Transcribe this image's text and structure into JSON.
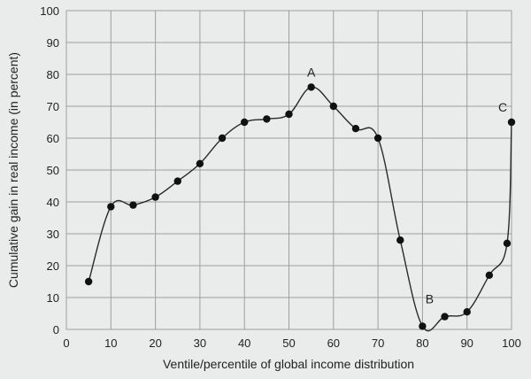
{
  "chart_data": {
    "type": "line",
    "title": "",
    "xlabel": "Ventile/percentile of global income distribution",
    "ylabel": "Cumulative gain in real income (in percent)",
    "xlim": [
      0,
      100
    ],
    "ylim": [
      0,
      100
    ],
    "xticks": [
      "0",
      "10",
      "20",
      "30",
      "40",
      "50",
      "60",
      "70",
      "80",
      "90",
      "100"
    ],
    "yticks": [
      "0",
      "10",
      "20",
      "30",
      "40",
      "50",
      "60",
      "70",
      "80",
      "90",
      "100"
    ],
    "grid": true,
    "series": [
      {
        "x": [
          5,
          10,
          15,
          20,
          25,
          30,
          35,
          40,
          45,
          50,
          55,
          60,
          65,
          70,
          75,
          80,
          85,
          90,
          95,
          99,
          100
        ],
        "y": [
          15,
          38.5,
          39,
          41.5,
          46.5,
          52,
          60,
          65,
          66,
          67.5,
          76,
          70,
          63,
          60,
          28,
          1,
          4,
          5.5,
          17,
          27,
          65
        ]
      }
    ],
    "annotations": [
      {
        "label": "A",
        "x": 55,
        "y": 76
      },
      {
        "label": "B",
        "x": 80,
        "y": 1
      },
      {
        "label": "C",
        "x": 100,
        "y": 65
      }
    ],
    "colors": {
      "background": "#e9ecea",
      "grid": "#9aa0a0",
      "line": "#2a2a2a",
      "point": "#111111"
    }
  }
}
